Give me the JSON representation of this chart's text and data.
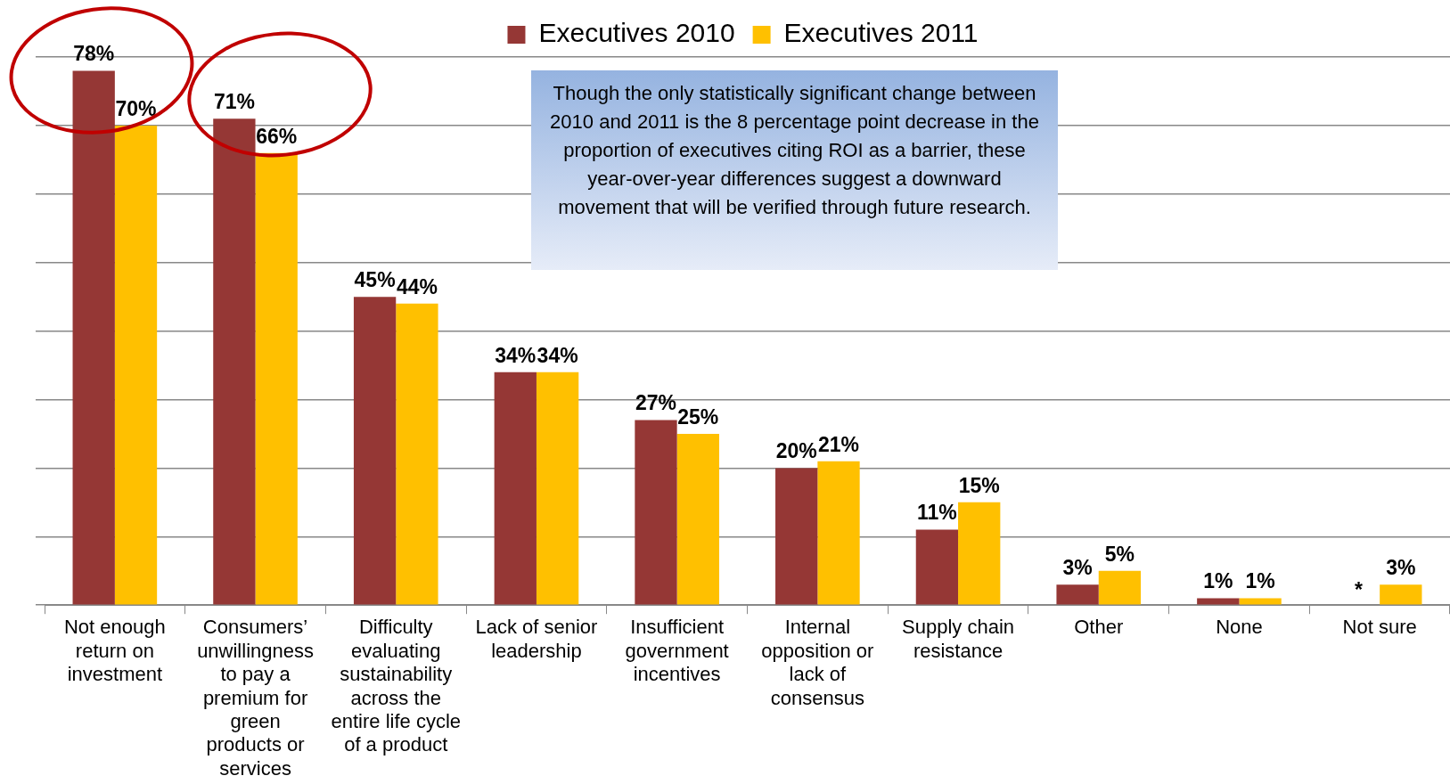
{
  "chart_data": {
    "type": "bar",
    "categories": [
      "Not enough return on investment",
      "Consumers’ unwillingness to pay a premium for green products or services",
      "Difficulty evaluating sustainability across the entire life cycle of a product",
      "Lack of senior leadership",
      "Insufficient government incentives",
      "Internal opposition or lack of consensus",
      "Supply chain resistance",
      "Other",
      "None",
      "Not sure"
    ],
    "series": [
      {
        "name": "Executives 2010",
        "color": "#953735",
        "values": [
          78,
          71,
          45,
          34,
          27,
          20,
          11,
          3,
          1,
          null
        ],
        "value_labels": [
          "78%",
          "71%",
          "45%",
          "34%",
          "27%",
          "20%",
          "11%",
          "3%",
          "1%",
          "*"
        ]
      },
      {
        "name": "Executives 2011",
        "color": "#ffc000",
        "values": [
          70,
          66,
          44,
          34,
          25,
          21,
          15,
          5,
          1,
          3
        ],
        "value_labels": [
          "70%",
          "66%",
          "44%",
          "34%",
          "25%",
          "21%",
          "15%",
          "5%",
          "1%",
          "3%"
        ]
      }
    ],
    "ylim": [
      0,
      80
    ],
    "yticks": [
      {
        "value": 0,
        "label": null
      },
      {
        "value": 10,
        "label": null
      },
      {
        "value": 20,
        "label": null
      },
      {
        "value": 30,
        "label": null
      },
      {
        "value": 40,
        "label": null
      },
      {
        "value": 50,
        "label": null
      },
      {
        "value": 60,
        "label": null
      },
      {
        "value": 70,
        "label": null
      },
      {
        "value": 80,
        "label": null
      }
    ],
    "tick_labels": "x",
    "grid": "y",
    "legend": "top",
    "annotations": [
      "Though the only statistically significant change between 2010 and 2011 is the 8 percentage point decrease in the proportion of executives citing ROI as a barrier, these year-over-year differences suggest a downward movement that will be verified through future research."
    ]
  }
}
